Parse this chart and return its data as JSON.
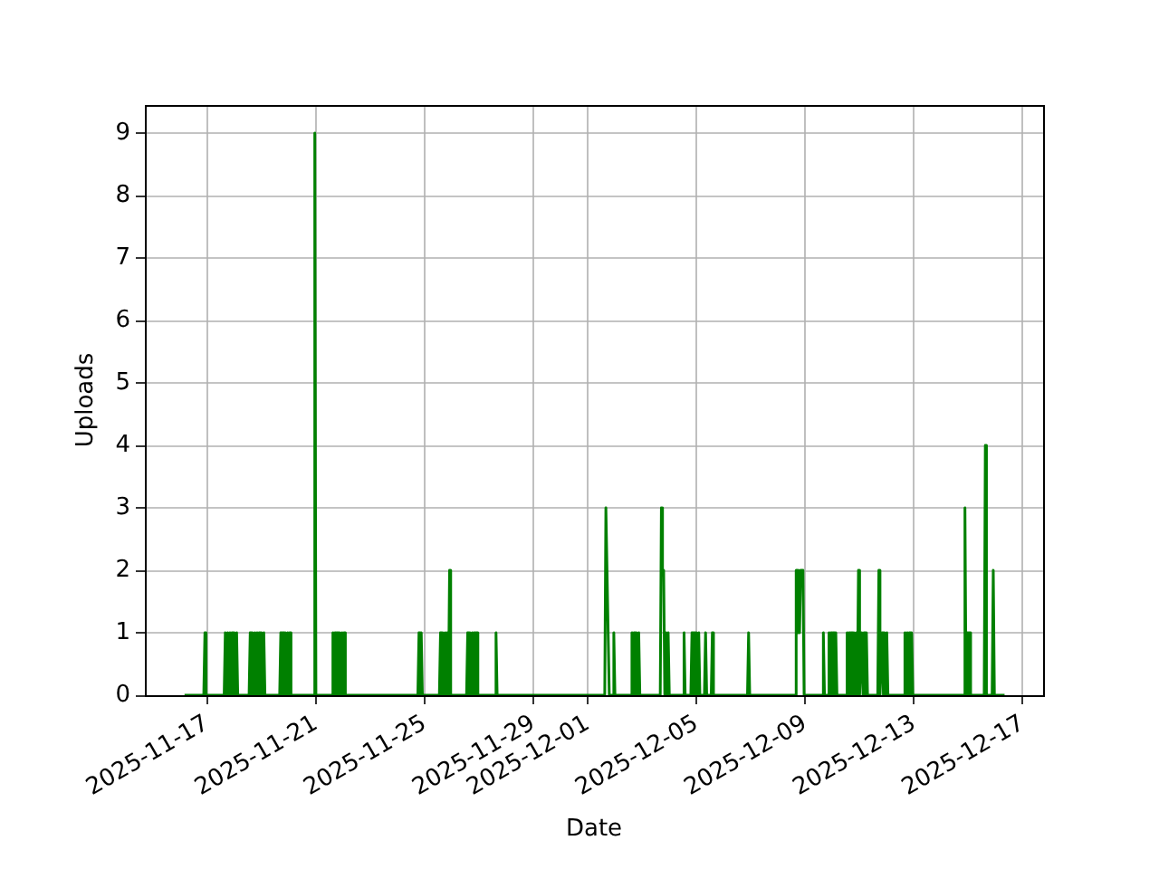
{
  "chart_data": {
    "type": "line",
    "xlabel": "Date",
    "ylabel": "Uploads",
    "x": [
      "2025-11-16T04:00",
      "2025-11-16T21:00",
      "2025-11-16T22:00",
      "2025-11-16T23:00",
      "2025-11-17T15:00",
      "2025-11-17T16:00",
      "2025-11-17T17:00",
      "2025-11-17T18:00",
      "2025-11-17T19:00",
      "2025-11-17T20:00",
      "2025-11-17T21:00",
      "2025-11-17T22:00",
      "2025-11-17T23:00",
      "2025-11-18T00:00",
      "2025-11-18T01:00",
      "2025-11-18T02:00",
      "2025-11-18T03:00",
      "2025-11-18T13:00",
      "2025-11-18T14:00",
      "2025-11-18T15:00",
      "2025-11-18T16:00",
      "2025-11-18T17:00",
      "2025-11-18T18:00",
      "2025-11-18T19:00",
      "2025-11-18T20:00",
      "2025-11-18T21:00",
      "2025-11-18T22:00",
      "2025-11-18T23:00",
      "2025-11-19T00:00",
      "2025-11-19T01:00",
      "2025-11-19T02:00",
      "2025-11-19T03:00",
      "2025-11-19T16:00",
      "2025-11-19T17:00",
      "2025-11-19T18:00",
      "2025-11-19T19:00",
      "2025-11-19T20:00",
      "2025-11-19T21:00",
      "2025-11-19T22:00",
      "2025-11-19T23:00",
      "2025-11-20T00:00",
      "2025-11-20T01:00",
      "2025-11-20T02:00",
      "2025-11-20T22:00",
      "2025-11-20T23:00",
      "2025-11-21T00:00",
      "2025-11-21T14:00",
      "2025-11-21T15:00",
      "2025-11-21T16:00",
      "2025-11-21T17:00",
      "2025-11-21T18:00",
      "2025-11-21T19:00",
      "2025-11-21T20:00",
      "2025-11-21T21:00",
      "2025-11-21T22:00",
      "2025-11-21T23:00",
      "2025-11-22T00:00",
      "2025-11-22T01:00",
      "2025-11-22T02:00",
      "2025-11-24T18:00",
      "2025-11-24T19:00",
      "2025-11-24T20:00",
      "2025-11-24T21:00",
      "2025-11-24T22:00",
      "2025-11-25T13:00",
      "2025-11-25T14:00",
      "2025-11-25T15:00",
      "2025-11-25T16:00",
      "2025-11-25T17:00",
      "2025-11-25T18:00",
      "2025-11-25T19:00",
      "2025-11-25T20:00",
      "2025-11-25T21:00",
      "2025-11-25T22:00",
      "2025-11-25T23:00",
      "2025-11-26T13:00",
      "2025-11-26T14:00",
      "2025-11-26T15:00",
      "2025-11-26T16:00",
      "2025-11-26T17:00",
      "2025-11-26T18:00",
      "2025-11-26T19:00",
      "2025-11-26T20:00",
      "2025-11-26T21:00",
      "2025-11-26T22:00",
      "2025-11-26T23:00",
      "2025-11-27T14:00",
      "2025-11-27T15:00",
      "2025-11-27T16:00",
      "2025-12-01T15:00",
      "2025-12-01T16:00",
      "2025-12-01T17:00",
      "2025-12-01T18:00",
      "2025-12-01T19:00",
      "2025-12-01T22:00",
      "2025-12-01T23:00",
      "2025-12-02T00:00",
      "2025-12-02T14:00",
      "2025-12-02T15:00",
      "2025-12-02T16:00",
      "2025-12-02T17:00",
      "2025-12-02T18:00",
      "2025-12-02T19:00",
      "2025-12-02T20:00",
      "2025-12-02T21:00",
      "2025-12-02T22:00",
      "2025-12-03T16:00",
      "2025-12-03T17:00",
      "2025-12-03T18:00",
      "2025-12-03T19:00",
      "2025-12-03T20:00",
      "2025-12-03T21:00",
      "2025-12-03T22:00",
      "2025-12-03T23:00",
      "2025-12-04T00:00",
      "2025-12-04T12:00",
      "2025-12-04T13:00",
      "2025-12-04T14:00",
      "2025-12-04T19:00",
      "2025-12-04T20:00",
      "2025-12-04T21:00",
      "2025-12-04T22:00",
      "2025-12-04T23:00",
      "2025-12-05T00:00",
      "2025-12-05T01:00",
      "2025-12-05T02:00",
      "2025-12-05T03:00",
      "2025-12-05T07:00",
      "2025-12-05T08:00",
      "2025-12-05T09:00",
      "2025-12-05T13:00",
      "2025-12-05T14:00",
      "2025-12-05T15:00",
      "2025-12-06T21:00",
      "2025-12-06T22:00",
      "2025-12-06T23:00",
      "2025-12-08T15:00",
      "2025-12-08T16:00",
      "2025-12-08T17:00",
      "2025-12-08T18:00",
      "2025-12-08T19:00",
      "2025-12-08T20:00",
      "2025-12-08T21:00",
      "2025-12-08T22:00",
      "2025-12-08T23:00",
      "2025-12-09T15:00",
      "2025-12-09T16:00",
      "2025-12-09T17:00",
      "2025-12-09T20:00",
      "2025-12-09T21:00",
      "2025-12-09T22:00",
      "2025-12-09T23:00",
      "2025-12-10T00:00",
      "2025-12-10T01:00",
      "2025-12-10T02:00",
      "2025-12-10T03:00",
      "2025-12-10T04:00",
      "2025-12-10T12:00",
      "2025-12-10T13:00",
      "2025-12-10T14:00",
      "2025-12-10T15:00",
      "2025-12-10T16:00",
      "2025-12-10T17:00",
      "2025-12-10T18:00",
      "2025-12-10T19:00",
      "2025-12-10T20:00",
      "2025-12-10T21:00",
      "2025-12-10T22:00",
      "2025-12-10T23:00",
      "2025-12-11T00:00",
      "2025-12-11T02:00",
      "2025-12-11T03:00",
      "2025-12-11T04:00",
      "2025-12-11T05:00",
      "2025-12-11T06:00",
      "2025-12-11T07:00",
      "2025-12-11T16:00",
      "2025-12-11T17:00",
      "2025-12-11T18:00",
      "2025-12-11T20:00",
      "2025-12-11T21:00",
      "2025-12-11T22:00",
      "2025-12-11T23:00",
      "2025-12-12T00:00",
      "2025-12-12T01:00",
      "2025-12-12T15:00",
      "2025-12-12T16:00",
      "2025-12-12T17:00",
      "2025-12-12T18:00",
      "2025-12-12T19:00",
      "2025-12-12T20:00",
      "2025-12-12T21:00",
      "2025-12-12T22:00",
      "2025-12-12T23:00",
      "2025-12-14T20:00",
      "2025-12-14T21:00",
      "2025-12-14T22:00",
      "2025-12-14T23:00",
      "2025-12-15T00:00",
      "2025-12-15T01:00",
      "2025-12-15T02:00",
      "2025-12-15T14:00",
      "2025-12-15T15:00",
      "2025-12-15T16:00",
      "2025-12-15T21:00",
      "2025-12-15T22:00",
      "2025-12-15T23:00",
      "2025-12-16T08:00"
    ],
    "series": [
      {
        "color": "#008000",
        "values": [
          0,
          0,
          1,
          0,
          0,
          1,
          0,
          1,
          0,
          1,
          0,
          1,
          0,
          1,
          0,
          1,
          0,
          0,
          1,
          0,
          1,
          0,
          1,
          0,
          1,
          0,
          1,
          0,
          1,
          0,
          1,
          0,
          0,
          1,
          0,
          1,
          0,
          1,
          0,
          1,
          0,
          1,
          0,
          0,
          9,
          0,
          0,
          1,
          0,
          1,
          0,
          1,
          0,
          1,
          0,
          1,
          0,
          1,
          0,
          0,
          1,
          0,
          1,
          0,
          0,
          1,
          0,
          1,
          0,
          1,
          0,
          1,
          0,
          2,
          0,
          0,
          1,
          0,
          1,
          0,
          1,
          0,
          1,
          0,
          1,
          0,
          0,
          1,
          0,
          0,
          3,
          2,
          2,
          0,
          0,
          1,
          0,
          0,
          1,
          0,
          1,
          0,
          1,
          0,
          1,
          0,
          0,
          3,
          2,
          2,
          0,
          1,
          0,
          1,
          0,
          0,
          1,
          0,
          0,
          1,
          0,
          1,
          0,
          1,
          0,
          1,
          0,
          0,
          1,
          0,
          0,
          1,
          0,
          0,
          1,
          0,
          0,
          2,
          2,
          1,
          1,
          2,
          2,
          2,
          0,
          0,
          1,
          0,
          0,
          1,
          0,
          1,
          0,
          1,
          0,
          1,
          0,
          0,
          1,
          0,
          1,
          0,
          1,
          0,
          1,
          0,
          1,
          0,
          2,
          0,
          1,
          0,
          1,
          0,
          1,
          0,
          0,
          2,
          0,
          1,
          0,
          1,
          0,
          1,
          0,
          0,
          1,
          0,
          1,
          0,
          1,
          0,
          1,
          0,
          0,
          3,
          0,
          1,
          0,
          1,
          0,
          0,
          4,
          0,
          0,
          2,
          0,
          0
        ]
      }
    ],
    "xlim": [
      "2025-11-14T17:00",
      "2025-12-17T18:00"
    ],
    "xticks": [
      "2025-11-17",
      "2025-11-21",
      "2025-11-25",
      "2025-11-29",
      "2025-12-01",
      "2025-12-05",
      "2025-12-09",
      "2025-12-13",
      "2025-12-17"
    ],
    "ylim": [
      0,
      9.45
    ],
    "yticks": [
      0,
      1,
      2,
      3,
      4,
      5,
      6,
      7,
      8,
      9
    ],
    "grid": true
  }
}
